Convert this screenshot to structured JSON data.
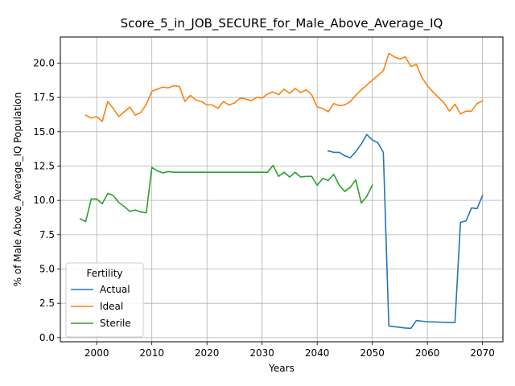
{
  "chart_data": {
    "type": "line",
    "title": "Score_5_in_JOB_SECURE_for_Male_Above_Average_IQ",
    "xlabel": "Years",
    "ylabel": "% of Male Above_Average_IQ Population",
    "xlim": [
      1993.4,
      2073.7
    ],
    "ylim": [
      -0.3,
      21.9
    ],
    "x_ticks": [
      2000,
      2010,
      2020,
      2030,
      2040,
      2050,
      2060,
      2070
    ],
    "y_ticks": [
      0.0,
      2.5,
      5.0,
      7.5,
      10.0,
      12.5,
      15.0,
      17.5,
      20.0
    ],
    "x_tick_labels": [
      "2000",
      "2010",
      "2020",
      "2030",
      "2040",
      "2050",
      "2060",
      "2070"
    ],
    "y_tick_labels": [
      "0.0",
      "2.5",
      "5.0",
      "7.5",
      "10.0",
      "12.5",
      "15.0",
      "17.5",
      "20.0"
    ],
    "grid": true,
    "legend": {
      "title": "Fertility",
      "placement": "lower-left"
    },
    "series": [
      {
        "name": "Actual",
        "color": "#1f77b4",
        "x": [
          2042,
          2043,
          2044,
          2045,
          2046,
          2047,
          2048,
          2049,
          2050,
          2051,
          2052,
          2053,
          2054,
          2055,
          2056,
          2057,
          2058,
          2059,
          2060,
          2061,
          2062,
          2063,
          2064,
          2065,
          2066,
          2067,
          2068,
          2069,
          2070
        ],
        "y": [
          13.6,
          13.5,
          13.5,
          13.25,
          13.1,
          13.55,
          14.1,
          14.8,
          14.4,
          14.2,
          13.5,
          0.85,
          0.8,
          0.75,
          0.7,
          0.68,
          1.25,
          1.2,
          1.15,
          1.15,
          1.13,
          1.12,
          1.1,
          1.1,
          8.4,
          8.5,
          9.45,
          9.4,
          10.35
        ]
      },
      {
        "name": "Ideal",
        "color": "#ff7f0e",
        "x": [
          1998,
          1999,
          2000,
          2001,
          2002,
          2003,
          2004,
          2005,
          2006,
          2007,
          2008,
          2009,
          2010,
          2011,
          2012,
          2013,
          2014,
          2015,
          2016,
          2017,
          2018,
          2019,
          2020,
          2021,
          2022,
          2023,
          2024,
          2025,
          2026,
          2027,
          2028,
          2029,
          2030,
          2031,
          2032,
          2033,
          2034,
          2035,
          2036,
          2037,
          2038,
          2039,
          2040,
          2041,
          2042,
          2043,
          2044,
          2045,
          2046,
          2047,
          2048,
          2049,
          2050,
          2051,
          2052,
          2053,
          2054,
          2055,
          2056,
          2057,
          2058,
          2059,
          2060,
          2061,
          2062,
          2063,
          2064,
          2065,
          2066,
          2067,
          2068,
          2069,
          2070
        ],
        "y": [
          16.2,
          16.0,
          16.1,
          15.75,
          17.2,
          16.7,
          16.1,
          16.45,
          16.8,
          16.2,
          16.4,
          17.0,
          17.95,
          18.1,
          18.25,
          18.2,
          18.35,
          18.3,
          17.2,
          17.65,
          17.3,
          17.2,
          16.95,
          16.95,
          16.7,
          17.2,
          16.95,
          17.1,
          17.45,
          17.4,
          17.25,
          17.5,
          17.45,
          17.75,
          17.9,
          17.7,
          18.1,
          17.8,
          18.15,
          17.85,
          18.05,
          17.7,
          16.8,
          16.7,
          16.45,
          17.05,
          16.9,
          16.95,
          17.2,
          17.65,
          18.05,
          18.4,
          18.75,
          19.1,
          19.45,
          20.7,
          20.45,
          20.3,
          20.45,
          19.75,
          19.9,
          18.95,
          18.35,
          17.9,
          17.5,
          17.1,
          16.5,
          17.0,
          16.3,
          16.5,
          16.5,
          17.05,
          17.25
        ]
      },
      {
        "name": "Sterile",
        "color": "#2ca02c",
        "x": [
          1997,
          1998,
          1999,
          2000,
          2001,
          2002,
          2003,
          2004,
          2005,
          2006,
          2007,
          2008,
          2009,
          2010,
          2011,
          2012,
          2013,
          2014,
          2015,
          2016,
          2017,
          2018,
          2019,
          2020,
          2021,
          2022,
          2023,
          2024,
          2025,
          2026,
          2027,
          2028,
          2029,
          2030,
          2031,
          2032,
          2033,
          2034,
          2035,
          2036,
          2037,
          2038,
          2039,
          2040,
          2041,
          2042,
          2043,
          2044,
          2045,
          2046,
          2047,
          2048,
          2049,
          2050
        ],
        "y": [
          8.65,
          8.45,
          10.1,
          10.1,
          9.75,
          10.5,
          10.35,
          9.85,
          9.55,
          9.2,
          9.3,
          9.15,
          9.1,
          12.4,
          12.15,
          12.0,
          12.1,
          12.05,
          12.05,
          12.05,
          12.05,
          12.05,
          12.05,
          12.05,
          12.05,
          12.05,
          12.05,
          12.05,
          12.05,
          12.05,
          12.05,
          12.05,
          12.05,
          12.05,
          12.05,
          12.55,
          11.75,
          12.05,
          11.7,
          12.05,
          11.7,
          11.75,
          11.75,
          11.1,
          11.6,
          11.45,
          11.9,
          11.1,
          10.65,
          10.95,
          11.5,
          9.8,
          10.3,
          11.1
        ]
      }
    ]
  }
}
